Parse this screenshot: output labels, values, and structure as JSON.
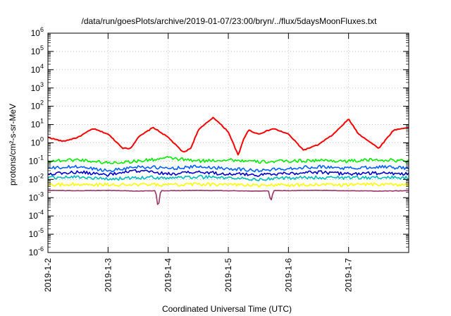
{
  "chart_data": {
    "type": "line",
    "title": "/data/run/goesPlots/archive/2019-01-07/23:00/bryn/../flux/5daysMoonFluxes.txt",
    "xlabel": "Coordinated Universal Time (UTC)",
    "ylabel": "protons/cm²-s-sr-MeV",
    "xscale": "time",
    "xlim": [
      "2019-01-02 00:00",
      "2019-01-08 00:00"
    ],
    "xticks": [
      "2019-1-2",
      "2019-1-3",
      "2019-1-4",
      "2019-1-5",
      "2019-1-6",
      "2019-1-7"
    ],
    "yscale": "log",
    "ylim": [
      1e-06,
      1000000.0
    ],
    "ytick_exponents": [
      -6,
      -5,
      -4,
      -3,
      -2,
      -1,
      0,
      1,
      2,
      3,
      4,
      5,
      6
    ],
    "grid": true,
    "legend": "none",
    "series": [
      {
        "color": "#ff0000",
        "x": [
          "2019-01-02 00:00",
          "2019-01-02 06:00",
          "2019-01-02 12:00",
          "2019-01-02 18:00",
          "2019-01-03 00:00",
          "2019-01-03 06:00",
          "2019-01-03 09:00",
          "2019-01-03 12:00",
          "2019-01-03 18:00",
          "2019-01-04 00:00",
          "2019-01-04 06:00",
          "2019-01-04 09:00",
          "2019-01-04 12:00",
          "2019-01-04 18:00",
          "2019-01-05 00:00",
          "2019-01-05 04:00",
          "2019-01-05 06:00",
          "2019-01-05 08:00",
          "2019-01-05 12:00",
          "2019-01-05 18:00",
          "2019-01-06 00:00",
          "2019-01-06 06:00",
          "2019-01-06 12:00",
          "2019-01-06 18:00",
          "2019-01-07 00:00",
          "2019-01-07 04:00",
          "2019-01-07 06:00",
          "2019-01-07 12:00",
          "2019-01-07 18:00",
          "2019-01-08 00:00"
        ],
        "y": [
          2,
          1.2,
          2,
          6,
          3,
          0.5,
          0.5,
          2,
          7,
          2,
          0.3,
          0.5,
          5,
          25,
          4,
          0.2,
          1.5,
          5,
          3,
          6,
          3,
          0.4,
          0.8,
          3,
          20,
          3,
          2,
          0.5,
          5,
          7
        ]
      },
      {
        "color": "#00ee00",
        "x": [
          "2019-01-02 00:00",
          "2019-01-02 12:00",
          "2019-01-03 00:00",
          "2019-01-03 12:00",
          "2019-01-04 00:00",
          "2019-01-04 12:00",
          "2019-01-05 00:00",
          "2019-01-05 12:00",
          "2019-01-06 00:00",
          "2019-01-06 12:00",
          "2019-01-07 00:00",
          "2019-01-07 12:00",
          "2019-01-08 00:00"
        ],
        "y": [
          0.1,
          0.12,
          0.08,
          0.1,
          0.15,
          0.1,
          0.12,
          0.09,
          0.1,
          0.11,
          0.1,
          0.12,
          0.1
        ]
      },
      {
        "color": "#0060ff",
        "x": [
          "2019-01-02 00:00",
          "2019-01-02 12:00",
          "2019-01-03 00:00",
          "2019-01-03 12:00",
          "2019-01-04 00:00",
          "2019-01-04 12:00",
          "2019-01-05 00:00",
          "2019-01-05 12:00",
          "2019-01-06 00:00",
          "2019-01-06 12:00",
          "2019-01-07 00:00",
          "2019-01-07 12:00",
          "2019-01-08 00:00"
        ],
        "y": [
          0.04,
          0.05,
          0.03,
          0.05,
          0.04,
          0.05,
          0.04,
          0.03,
          0.04,
          0.05,
          0.04,
          0.05,
          0.04
        ]
      },
      {
        "color": "#0000cc",
        "x": [
          "2019-01-02 00:00",
          "2019-01-02 12:00",
          "2019-01-03 00:00",
          "2019-01-03 12:00",
          "2019-01-04 00:00",
          "2019-01-04 12:00",
          "2019-01-05 00:00",
          "2019-01-05 12:00",
          "2019-01-06 00:00",
          "2019-01-06 12:00",
          "2019-01-07 00:00",
          "2019-01-07 12:00",
          "2019-01-08 00:00"
        ],
        "y": [
          0.02,
          0.025,
          0.018,
          0.03,
          0.02,
          0.025,
          0.02,
          0.018,
          0.022,
          0.025,
          0.02,
          0.022,
          0.02
        ]
      },
      {
        "color": "#00bbbb",
        "x": [
          "2019-01-02 00:00",
          "2019-01-02 12:00",
          "2019-01-03 00:00",
          "2019-01-03 12:00",
          "2019-01-04 00:00",
          "2019-01-04 12:00",
          "2019-01-05 00:00",
          "2019-01-05 12:00",
          "2019-01-06 00:00",
          "2019-01-06 12:00",
          "2019-01-07 00:00",
          "2019-01-07 12:00",
          "2019-01-08 00:00"
        ],
        "y": [
          0.012,
          0.014,
          0.01,
          0.013,
          0.012,
          0.014,
          0.012,
          0.01,
          0.012,
          0.013,
          0.012,
          0.013,
          0.012
        ]
      },
      {
        "color": "#ffff00",
        "x": [
          "2019-01-02 00:00",
          "2019-01-02 12:00",
          "2019-01-03 00:00",
          "2019-01-03 12:00",
          "2019-01-04 00:00",
          "2019-01-04 12:00",
          "2019-01-05 00:00",
          "2019-01-05 12:00",
          "2019-01-06 00:00",
          "2019-01-06 12:00",
          "2019-01-07 00:00",
          "2019-01-07 12:00",
          "2019-01-08 00:00"
        ],
        "y": [
          0.005,
          0.0055,
          0.005,
          0.0052,
          0.005,
          0.0055,
          0.005,
          0.0048,
          0.005,
          0.0052,
          0.005,
          0.0053,
          0.005
        ]
      },
      {
        "color": "#993366",
        "x": [
          "2019-01-02 00:00",
          "2019-01-02 12:00",
          "2019-01-03 00:00",
          "2019-01-03 12:00",
          "2019-01-03 19:00",
          "2019-01-03 20:00",
          "2019-01-03 21:00",
          "2019-01-04 12:00",
          "2019-01-05 00:00",
          "2019-01-05 12:00",
          "2019-01-05 16:00",
          "2019-01-05 17:00",
          "2019-01-05 18:00",
          "2019-01-06 12:00",
          "2019-01-07 00:00",
          "2019-01-07 12:00",
          "2019-01-08 00:00"
        ],
        "y": [
          0.0025,
          0.0024,
          0.0025,
          0.0023,
          0.0024,
          0.00025,
          0.0024,
          0.0025,
          0.0024,
          0.0023,
          0.0024,
          0.0006,
          0.0024,
          0.0025,
          0.0024,
          0.0023,
          0.0024
        ]
      }
    ]
  }
}
